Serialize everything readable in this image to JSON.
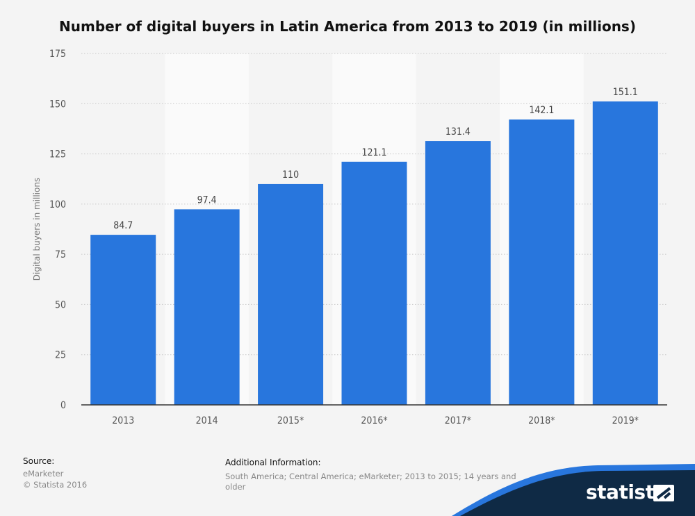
{
  "title": "Number of digital buyers in Latin America from 2013 to 2019 (in millions)",
  "chart_data": {
    "type": "bar",
    "title": "Number of digital buyers in Latin America from 2013 to 2019 (in millions)",
    "xlabel": "",
    "ylabel": "Digital buyers in millions",
    "categories": [
      "2013",
      "2014",
      "2015*",
      "2016*",
      "2017*",
      "2018*",
      "2019*"
    ],
    "values": [
      84.7,
      97.4,
      110,
      121.1,
      131.4,
      142.1,
      151.1
    ],
    "value_labels": [
      "84.7",
      "97.4",
      "110",
      "121.1",
      "131.4",
      "142.1",
      "151.1"
    ],
    "ylim": [
      0,
      175
    ],
    "yticks": [
      0,
      25,
      50,
      75,
      100,
      125,
      150,
      175
    ],
    "grid": true,
    "bar_color": "#2876dd"
  },
  "footer": {
    "source_label": "Source:",
    "source_lines": [
      "eMarketer",
      "© Statista 2016"
    ],
    "info_label": "Additional Information:",
    "info_lines": [
      "South America; Central America; eMarketer; 2013 to 2015; 14 years and",
      "older"
    ]
  },
  "brand": {
    "name": "statista",
    "band_color": "#0f2a45",
    "accent_color": "#2876dd"
  }
}
